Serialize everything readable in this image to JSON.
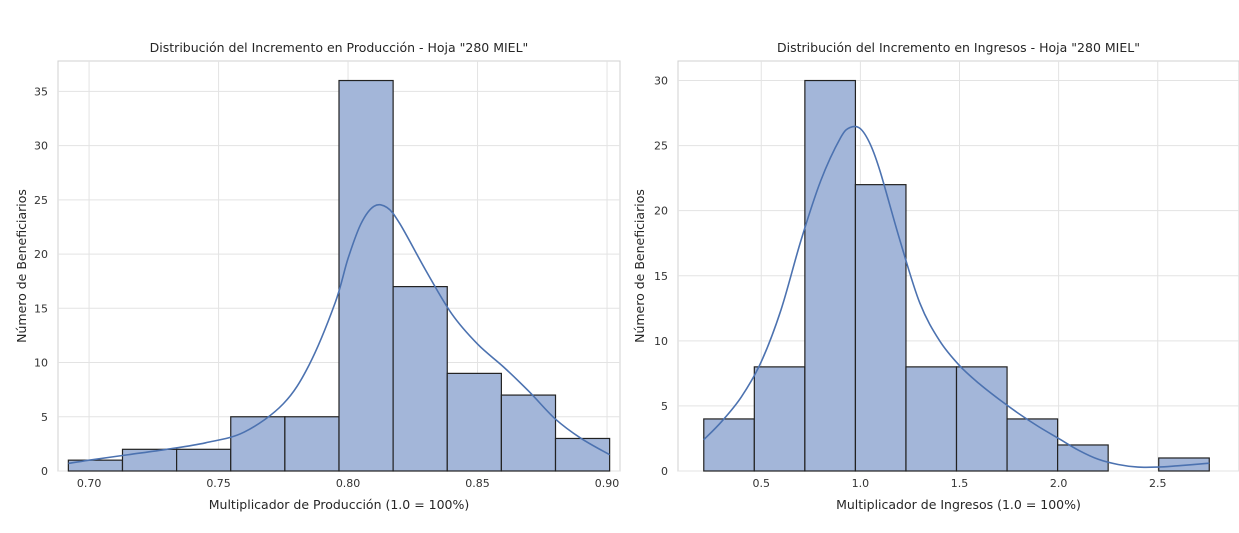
{
  "chart_data": [
    {
      "type": "bar",
      "title": "Distribución del Incremento en Producción - Hoja \"280 MIEL\"",
      "xlabel": "Multiplicador de Producción (1.0 = 100%)",
      "ylabel": "Número de Beneficiarios",
      "xlim": [
        0.688,
        0.905
      ],
      "ylim": [
        0,
        37.8
      ],
      "xticks": [
        0.7,
        0.75,
        0.8,
        0.85,
        0.9
      ],
      "xtick_labels": [
        "0.70",
        "0.75",
        "0.80",
        "0.85",
        "0.90"
      ],
      "yticks": [
        0,
        5,
        10,
        15,
        20,
        25,
        30,
        35
      ],
      "ytick_labels": [
        "0",
        "5",
        "10",
        "15",
        "20",
        "25",
        "30",
        "35"
      ],
      "bin_edges": [
        0.692,
        0.7129,
        0.7338,
        0.7547,
        0.7756,
        0.7965,
        0.8174,
        0.8383,
        0.8592,
        0.8801,
        0.901
      ],
      "values": [
        1,
        2,
        2,
        5,
        5,
        36,
        17,
        9,
        7,
        3
      ],
      "kde": {
        "x": [
          0.692,
          0.7,
          0.715,
          0.73,
          0.745,
          0.76,
          0.775,
          0.785,
          0.795,
          0.8,
          0.805,
          0.81,
          0.815,
          0.82,
          0.83,
          0.84,
          0.85,
          0.86,
          0.87,
          0.88,
          0.89,
          0.901
        ],
        "y": [
          0.7,
          1.0,
          1.5,
          2.0,
          2.6,
          3.6,
          6.2,
          9.8,
          15.5,
          19.6,
          22.8,
          24.4,
          24.3,
          22.8,
          18.5,
          14.5,
          11.7,
          9.6,
          7.3,
          4.8,
          3.0,
          1.5
        ]
      },
      "grid": true
    },
    {
      "type": "bar",
      "title": "Distribución del Incremento en Ingresos - Hoja \"280 MIEL\"",
      "xlabel": "Multiplicador de Ingresos (1.0 = 100%)",
      "ylabel": "Número de Beneficiarios",
      "xlim": [
        0.08,
        2.91
      ],
      "ylim": [
        0,
        31.5
      ],
      "xticks": [
        0.5,
        1.0,
        1.5,
        2.0,
        2.5
      ],
      "xtick_labels": [
        "0.5",
        "1.0",
        "1.5",
        "2.0",
        "2.5"
      ],
      "yticks": [
        0,
        5,
        10,
        15,
        20,
        25,
        30
      ],
      "ytick_labels": [
        "0",
        "5",
        "10",
        "15",
        "20",
        "25",
        "30"
      ],
      "bin_edges": [
        0.21,
        0.465,
        0.72,
        0.975,
        1.23,
        1.485,
        1.74,
        1.995,
        2.25,
        2.505,
        2.76
      ],
      "values": [
        4,
        8,
        30,
        22,
        8,
        8,
        4,
        2,
        0,
        1
      ],
      "kde": {
        "x": [
          0.21,
          0.3,
          0.4,
          0.5,
          0.6,
          0.7,
          0.8,
          0.9,
          0.95,
          1.0,
          1.05,
          1.1,
          1.2,
          1.3,
          1.4,
          1.5,
          1.6,
          1.7,
          1.8,
          1.9,
          2.0,
          2.1,
          2.2,
          2.3,
          2.4,
          2.5,
          2.6,
          2.76
        ],
        "y": [
          2.4,
          3.8,
          5.7,
          8.4,
          12.4,
          17.7,
          22.3,
          25.6,
          26.4,
          26.3,
          25.1,
          23.0,
          17.7,
          12.9,
          10.0,
          8.1,
          6.7,
          5.5,
          4.4,
          3.4,
          2.5,
          1.6,
          0.9,
          0.5,
          0.3,
          0.3,
          0.4,
          0.6
        ]
      },
      "grid": true
    }
  ]
}
